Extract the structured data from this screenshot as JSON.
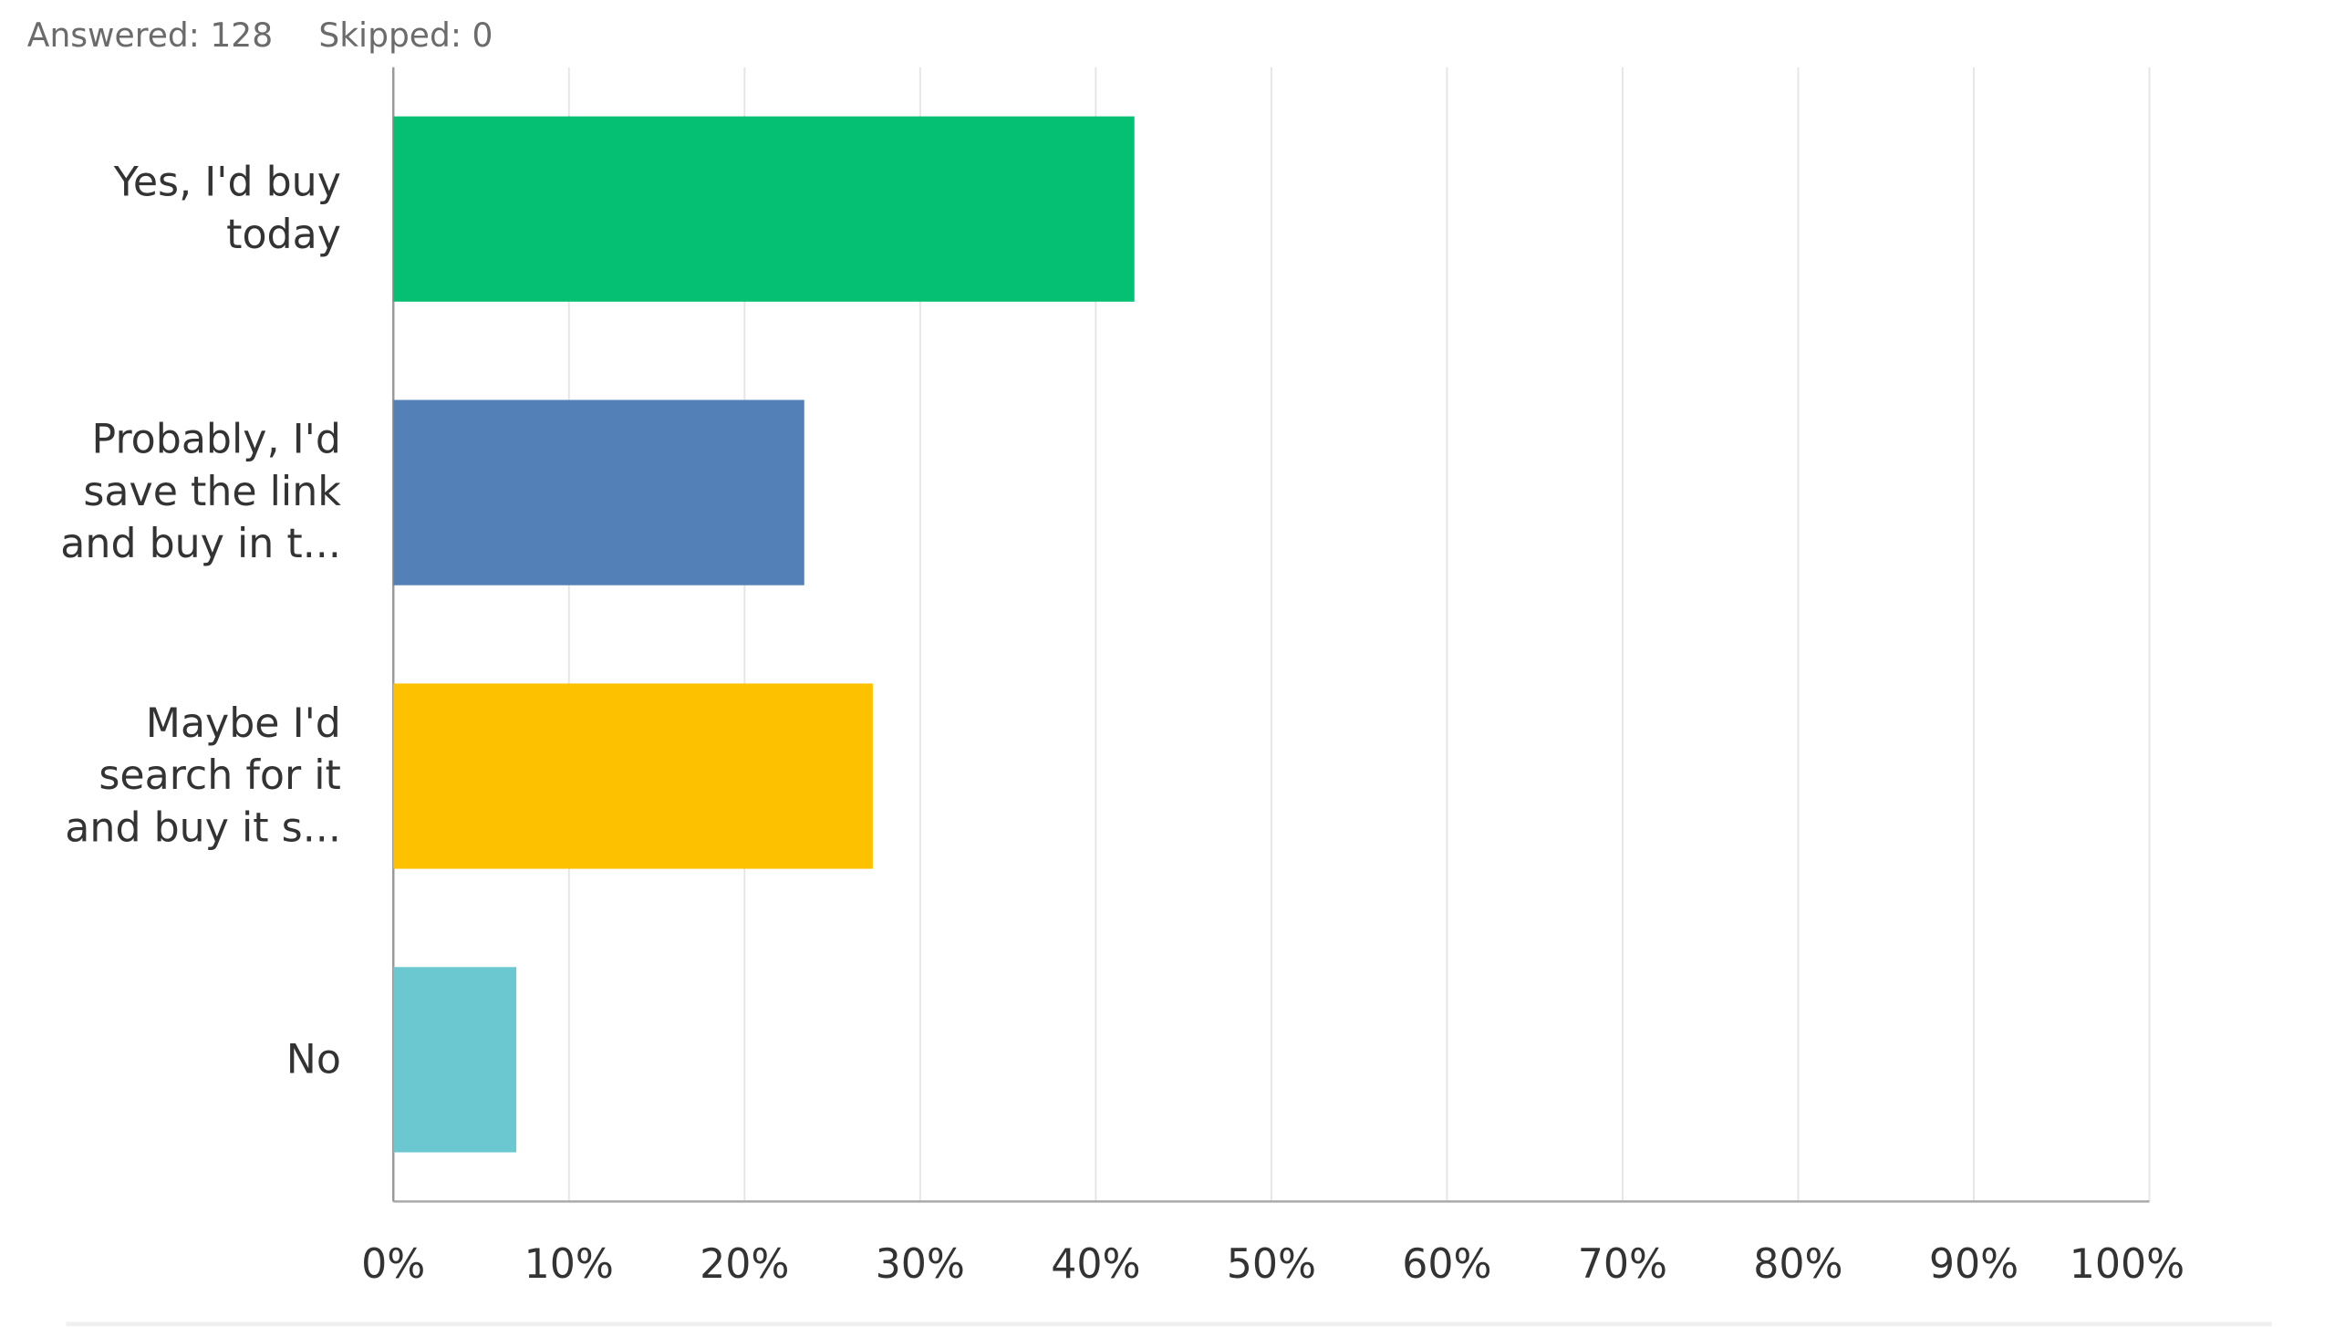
{
  "header": {
    "answered": "Answered: 128",
    "skipped": "Skipped: 0"
  },
  "chart_data": {
    "type": "bar",
    "orientation": "horizontal",
    "categories": [
      "Yes, I'd buy today",
      "Probably, I'd save the link and buy in t...",
      "Maybe I'd search for it and buy it s...",
      "No"
    ],
    "values": [
      42.2,
      23.4,
      27.3,
      7.0
    ],
    "colors": [
      "#05c072",
      "#5480b8",
      "#fdc100",
      "#6cc8d0"
    ],
    "xlim": [
      0,
      100
    ],
    "xticks": [
      {
        "value": 0,
        "label": "0%"
      },
      {
        "value": 10,
        "label": "10%"
      },
      {
        "value": 20,
        "label": "20%"
      },
      {
        "value": 30,
        "label": "30%"
      },
      {
        "value": 40,
        "label": "40%"
      },
      {
        "value": 50,
        "label": "50%"
      },
      {
        "value": 60,
        "label": "60%"
      },
      {
        "value": 70,
        "label": "70%"
      },
      {
        "value": 80,
        "label": "80%"
      },
      {
        "value": 90,
        "label": "90%"
      },
      {
        "value": 100,
        "label": "100%"
      }
    ],
    "grid": true
  }
}
